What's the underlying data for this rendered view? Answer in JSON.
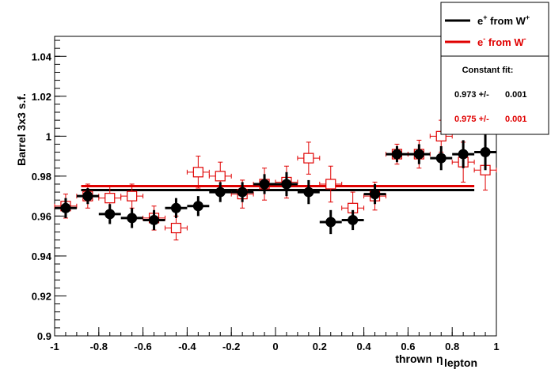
{
  "chart_data": {
    "type": "scatter",
    "xlabel": "thrown",
    "xlabel_symbol": "η",
    "xlabel_sub": "lepton",
    "ylabel": "Barrel 3x3 s.f.",
    "xlim": [
      -1,
      1
    ],
    "ylim": [
      0.9,
      1.05
    ],
    "x_ticks": [
      -1,
      -0.8,
      -0.6,
      -0.4,
      -0.2,
      0,
      0.2,
      0.4,
      0.6,
      0.8,
      1
    ],
    "x_tick_labels": [
      "-1",
      "-0.8",
      "-0.6",
      "-0.4",
      "-0.2",
      "0",
      "0.2",
      "0.4",
      "0.6",
      "0.8",
      "1"
    ],
    "y_ticks": [
      0.9,
      0.92,
      0.94,
      0.96,
      0.98,
      1.0,
      1.02,
      1.04
    ],
    "y_tick_labels": [
      "0.9",
      "0.92",
      "0.94",
      "0.96",
      "0.98",
      "1",
      "1.02",
      "1.04"
    ],
    "series": [
      {
        "name_base": "e",
        "name_sup": "+",
        "name_mid": " from W",
        "name_sup2": "+",
        "color": "#000000",
        "marker": "filled-circle",
        "x": [
          -0.95,
          -0.85,
          -0.75,
          -0.65,
          -0.55,
          -0.45,
          -0.35,
          -0.25,
          -0.15,
          -0.05,
          0.05,
          0.15,
          0.25,
          0.35,
          0.45,
          0.55,
          0.65,
          0.75,
          0.85,
          0.95
        ],
        "y": [
          0.964,
          0.97,
          0.961,
          0.959,
          0.958,
          0.964,
          0.965,
          0.972,
          0.972,
          0.976,
          0.976,
          0.972,
          0.957,
          0.958,
          0.971,
          0.991,
          0.991,
          0.989,
          0.991,
          0.992
        ],
        "yerr": [
          0.005,
          0.004,
          0.005,
          0.005,
          0.005,
          0.005,
          0.005,
          0.005,
          0.005,
          0.005,
          0.006,
          0.006,
          0.006,
          0.005,
          0.005,
          0.004,
          0.005,
          0.006,
          0.007,
          0.009
        ],
        "xerr": 0.05,
        "fit_value": 0.973,
        "fit_error": 0.001
      },
      {
        "name_base": "e",
        "name_sup": "-",
        "name_mid": " from W",
        "name_sup2": "-",
        "color": "#e00000",
        "marker": "open-square",
        "x": [
          -0.95,
          -0.85,
          -0.75,
          -0.65,
          -0.55,
          -0.45,
          -0.35,
          -0.25,
          -0.15,
          -0.05,
          0.05,
          0.15,
          0.25,
          0.35,
          0.45,
          0.55,
          0.65,
          0.75,
          0.85,
          0.95
        ],
        "y": [
          0.965,
          0.97,
          0.969,
          0.97,
          0.959,
          0.954,
          0.982,
          0.98,
          0.971,
          0.976,
          0.977,
          0.989,
          0.976,
          0.964,
          0.97,
          0.991,
          0.991,
          1.0,
          0.987,
          0.983
        ],
        "yerr": [
          0.006,
          0.006,
          0.006,
          0.006,
          0.006,
          0.006,
          0.008,
          0.007,
          0.007,
          0.008,
          0.008,
          0.008,
          0.009,
          0.008,
          0.007,
          0.005,
          0.007,
          0.008,
          0.01,
          0.01
        ],
        "xerr": 0.05,
        "fit_value": 0.975,
        "fit_error": 0.001
      }
    ],
    "fit_lines": [
      {
        "value": 0.973,
        "x_range": [
          -0.88,
          0.9
        ],
        "color": "#000000"
      },
      {
        "value": 0.975,
        "x_range": [
          -0.88,
          0.9
        ],
        "color": "#e00000"
      }
    ],
    "fit_box": {
      "title": "Constant fit:",
      "rows": [
        {
          "value": "0.973 +/-",
          "error": "0.001",
          "color": "#000000"
        },
        {
          "value": "0.975 +/-",
          "error": "0.001",
          "color": "#e00000"
        }
      ]
    },
    "legend_position": "top-right",
    "grid": false
  }
}
